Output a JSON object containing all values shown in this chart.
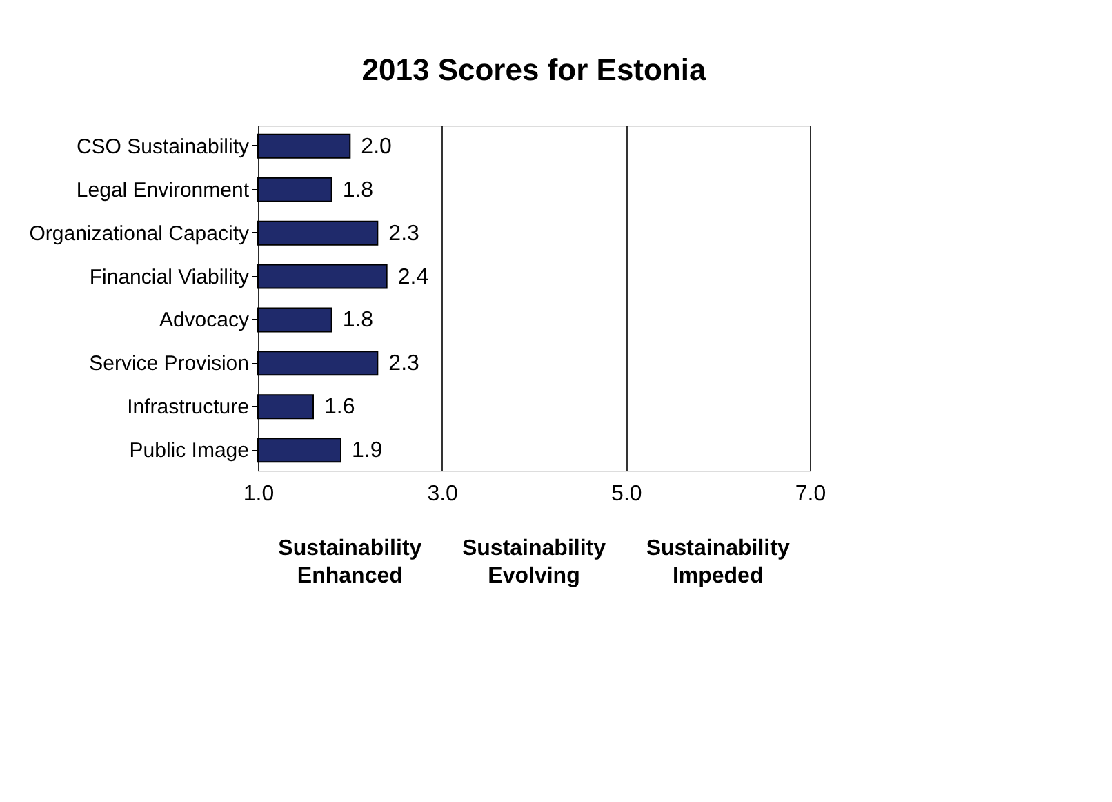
{
  "chart_data": {
    "type": "bar",
    "orientation": "horizontal",
    "title": "2013 Scores for Estonia",
    "categories": [
      "CSO Sustainability",
      "Legal Environment",
      "Organizational Capacity",
      "Financial Viability",
      "Advocacy",
      "Service Provision",
      "Infrastructure",
      "Public Image"
    ],
    "values": [
      2.0,
      1.8,
      2.3,
      2.4,
      1.8,
      2.3,
      1.6,
      1.9
    ],
    "value_labels": [
      "2.0",
      "1.8",
      "2.3",
      "2.4",
      "1.8",
      "2.3",
      "1.6",
      "1.9"
    ],
    "color": "#1f2a6b",
    "xlim": [
      1,
      7
    ],
    "xticks": [
      {
        "value": 1,
        "label": "1.0"
      },
      {
        "value": 3,
        "label": "3.0"
      },
      {
        "value": 5,
        "label": "5.0"
      },
      {
        "value": 7,
        "label": "7.0"
      }
    ],
    "grid": "x",
    "annotations": [
      "Sustainability Enhanced",
      "Sustainability Evolving",
      "Sustainability Impeded"
    ]
  }
}
